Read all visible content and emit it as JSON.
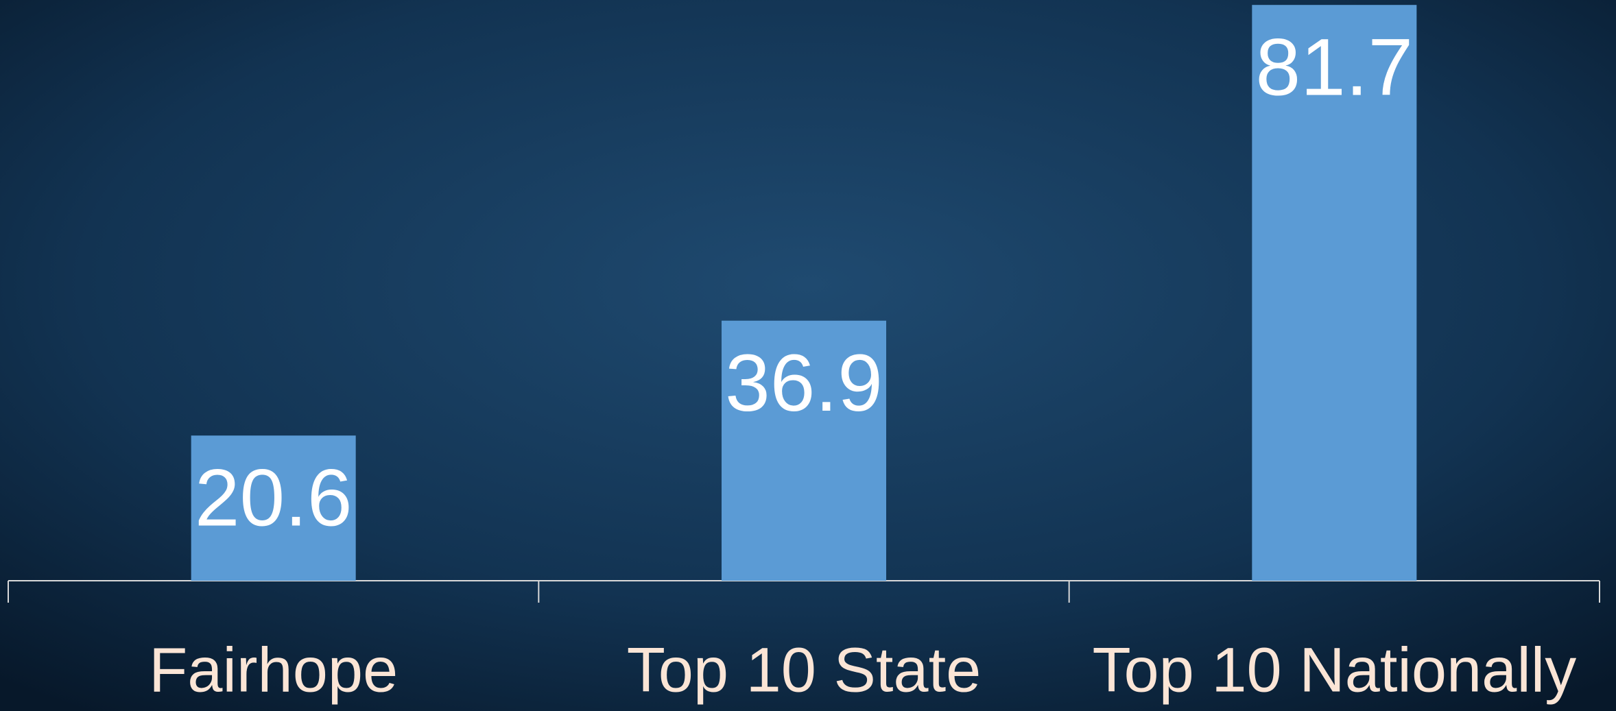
{
  "chart_data": {
    "type": "bar",
    "categories": [
      "Fairhope",
      "Top 10 State",
      "Top 10 Nationally"
    ],
    "values": [
      20.6,
      36.9,
      81.7
    ],
    "color": "#5b9bd5",
    "ylim": [
      0,
      82.4
    ],
    "grid": false
  }
}
